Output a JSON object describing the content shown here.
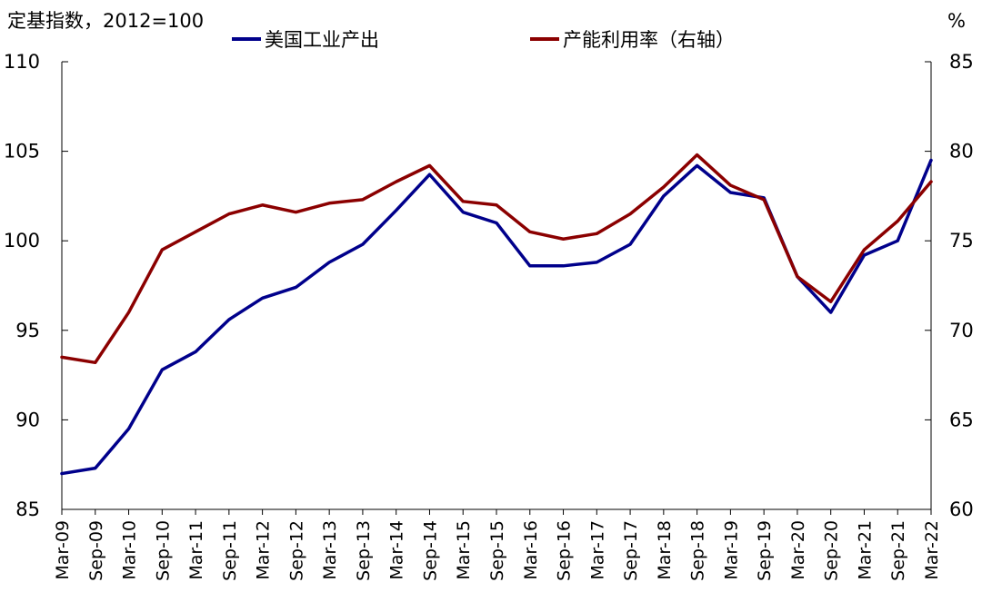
{
  "chart_data": {
    "type": "line",
    "left_axis_title": "定基指数，2012=100",
    "right_axis_title": "%",
    "ylim_left": [
      85,
      110
    ],
    "yticks_left": [
      85,
      90,
      95,
      100,
      105,
      110
    ],
    "ylim_right": [
      60,
      85
    ],
    "yticks_right": [
      60,
      65,
      70,
      75,
      80,
      85
    ],
    "x_ticks": [
      "Mar-09",
      "Sep-09",
      "Mar-10",
      "Sep-10",
      "Mar-11",
      "Sep-11",
      "Mar-12",
      "Sep-12",
      "Mar-13",
      "Sep-13",
      "Mar-14",
      "Sep-14",
      "Mar-15",
      "Sep-15",
      "Mar-16",
      "Sep-16",
      "Mar-17",
      "Sep-17",
      "Mar-18",
      "Sep-18",
      "Mar-19",
      "Sep-19",
      "Mar-20",
      "Sep-20",
      "Mar-21",
      "Sep-21",
      "Mar-22"
    ],
    "legend_position": "top",
    "grid": false,
    "series": [
      {
        "name": "美国工业产出",
        "axis": "left",
        "color": "#00008B",
        "points": [
          [
            "Mar-09",
            87.0
          ],
          [
            "Sep-09",
            87.3
          ],
          [
            "Mar-10",
            89.5
          ],
          [
            "Sep-10",
            92.8
          ],
          [
            "Mar-11",
            93.8
          ],
          [
            "Sep-11",
            95.6
          ],
          [
            "Mar-12",
            96.8
          ],
          [
            "Sep-12",
            97.4
          ],
          [
            "Mar-13",
            98.8
          ],
          [
            "Sep-13",
            99.8
          ],
          [
            "Mar-14",
            101.7
          ],
          [
            "Sep-14",
            103.7
          ],
          [
            "Mar-15",
            101.6
          ],
          [
            "Sep-15",
            101.0
          ],
          [
            "Mar-16",
            98.6
          ],
          [
            "Sep-16",
            98.6
          ],
          [
            "Mar-17",
            98.8
          ],
          [
            "Sep-17",
            99.8
          ],
          [
            "Mar-18",
            102.5
          ],
          [
            "Sep-18",
            104.2
          ],
          [
            "Mar-19",
            102.7
          ],
          [
            "Sep-19",
            102.4
          ],
          [
            "Mar-20",
            98.0
          ],
          [
            "Sep-20",
            96.0
          ],
          [
            "Mar-21",
            99.2
          ],
          [
            "Sep-21",
            100.0
          ],
          [
            "Mar-22",
            104.5
          ]
        ]
      },
      {
        "name": "产能利用率（右轴）",
        "axis": "right",
        "color": "#8B0000",
        "points": [
          [
            "Mar-09",
            68.5
          ],
          [
            "Sep-09",
            68.2
          ],
          [
            "Mar-10",
            71.0
          ],
          [
            "Sep-10",
            74.5
          ],
          [
            "Mar-11",
            75.5
          ],
          [
            "Sep-11",
            76.5
          ],
          [
            "Mar-12",
            77.0
          ],
          [
            "Sep-12",
            76.6
          ],
          [
            "Mar-13",
            77.1
          ],
          [
            "Sep-13",
            77.3
          ],
          [
            "Mar-14",
            78.3
          ],
          [
            "Sep-14",
            79.2
          ],
          [
            "Mar-15",
            77.2
          ],
          [
            "Sep-15",
            77.0
          ],
          [
            "Mar-16",
            75.5
          ],
          [
            "Sep-16",
            75.1
          ],
          [
            "Mar-17",
            75.4
          ],
          [
            "Sep-17",
            76.5
          ],
          [
            "Mar-18",
            78.0
          ],
          [
            "Sep-18",
            79.8
          ],
          [
            "Mar-19",
            78.1
          ],
          [
            "Sep-19",
            77.3
          ],
          [
            "Mar-20",
            73.0
          ],
          [
            "Sep-20",
            71.6
          ],
          [
            "Mar-21",
            74.5
          ],
          [
            "Sep-21",
            76.1
          ],
          [
            "Mar-22",
            78.3
          ]
        ]
      }
    ]
  }
}
